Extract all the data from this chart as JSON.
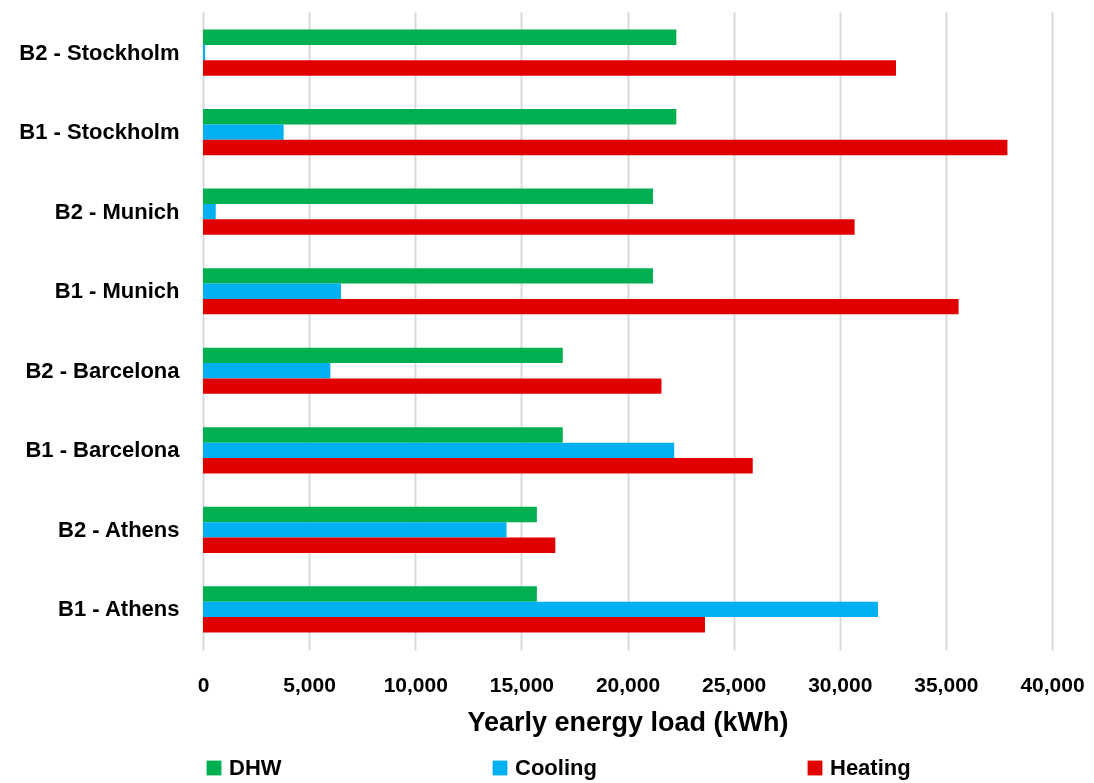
{
  "chart_data": {
    "type": "bar",
    "orientation": "horizontal",
    "categories": [
      "B2 - Stockholm",
      "B1 - Stockholm",
      "B2 - Munich",
      "B1 - Munich",
      "B2 - Barcelona",
      "B1 - Barcelona",
      "B2 - Athens",
      "B1 - Athens"
    ],
    "series": [
      {
        "name": "DHW",
        "color": "#00b050",
        "values": [
          22300,
          22300,
          21200,
          21200,
          16950,
          16950,
          15730,
          15730
        ]
      },
      {
        "name": "Cooling",
        "color": "#00b0f0",
        "values": [
          100,
          3800,
          600,
          6500,
          6000,
          22200,
          14300,
          31800
        ]
      },
      {
        "name": "Heating",
        "color": "#e00000",
        "values": [
          32650,
          37900,
          30700,
          35600,
          21600,
          25900,
          16600,
          23650
        ]
      }
    ],
    "xlabel": "Yearly energy load (kWh)",
    "xlim": [
      0,
      40000
    ],
    "xticks": [
      0,
      {
        "value": 5000,
        "label": "5,000"
      },
      {
        "value": 10000,
        "label": "10,000"
      },
      {
        "value": 15000,
        "label": "15,000"
      },
      {
        "value": 20000,
        "label": "20,000"
      },
      {
        "value": 25000,
        "label": "25,000"
      },
      {
        "value": 30000,
        "label": "30,000"
      },
      {
        "value": 35000,
        "label": "35,000"
      },
      {
        "value": 40000,
        "label": "40,000"
      }
    ],
    "grid": "x",
    "legend": "bottom"
  }
}
